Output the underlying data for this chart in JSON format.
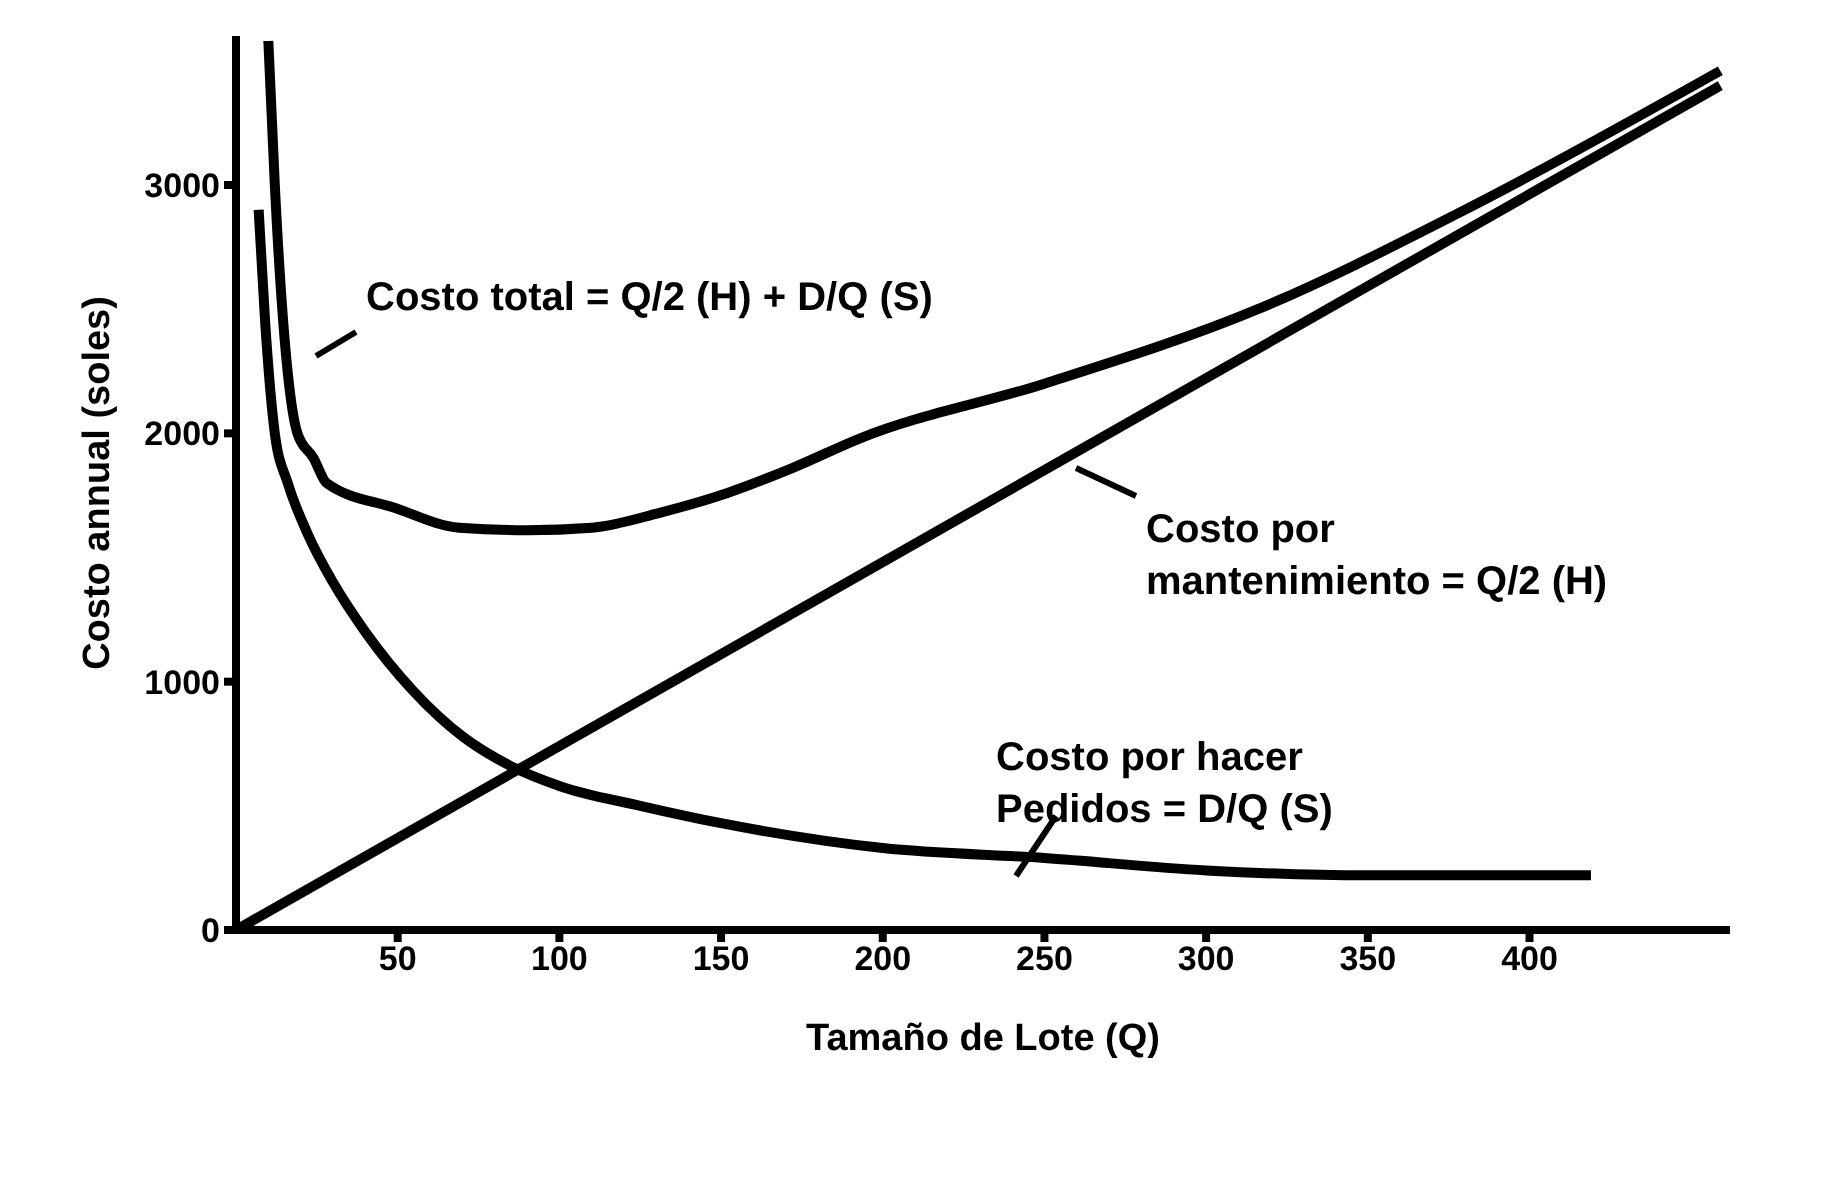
{
  "chart_data": {
    "type": "line",
    "xlabel": "Tamaño de Lote (Q)",
    "ylabel": "Costo annual (soles)",
    "xlim": [
      0,
      462
    ],
    "ylim": [
      0,
      3600
    ],
    "xticks": [
      50,
      100,
      150,
      200,
      250,
      300,
      350,
      400
    ],
    "yticks": [
      0,
      1000,
      2000,
      3000
    ],
    "grid": false,
    "legend": false,
    "marker": "none",
    "line_style": "solid",
    "series": [
      {
        "color": "#000000",
        "x": [
          10,
          12,
          19,
          24,
          28,
          49,
          69,
          90,
          110,
          131,
          152,
          172,
          193,
          250,
          316,
          380,
          459
        ],
        "values": [
          3580,
          3000,
          2000,
          1900,
          1800,
          1700,
          1620,
          1610,
          1620,
          1680,
          1760,
          1860,
          1980,
          2200,
          2500,
          2900,
          3460
        ]
      },
      {
        "color": "#000000",
        "x": [
          0,
          459
        ],
        "values": [
          0,
          3400
        ]
      },
      {
        "color": "#000000",
        "x": [
          7,
          9,
          12,
          16,
          22,
          30,
          40,
          55,
          70,
          85,
          100,
          125,
          150,
          200,
          250,
          300,
          350,
          419
        ],
        "values": [
          2900,
          2450,
          2000,
          1800,
          1600,
          1400,
          1200,
          960,
          780,
          660,
          580,
          500,
          430,
          330,
          290,
          240,
          220,
          220
        ]
      }
    ],
    "annotations": [
      "Costo total = Q/2 (H) + D/Q (S)",
      "Costo por\nmantenimiento = Q/2 (H)",
      "Costo por hacer\nPedidos = D/Q (S)"
    ]
  }
}
